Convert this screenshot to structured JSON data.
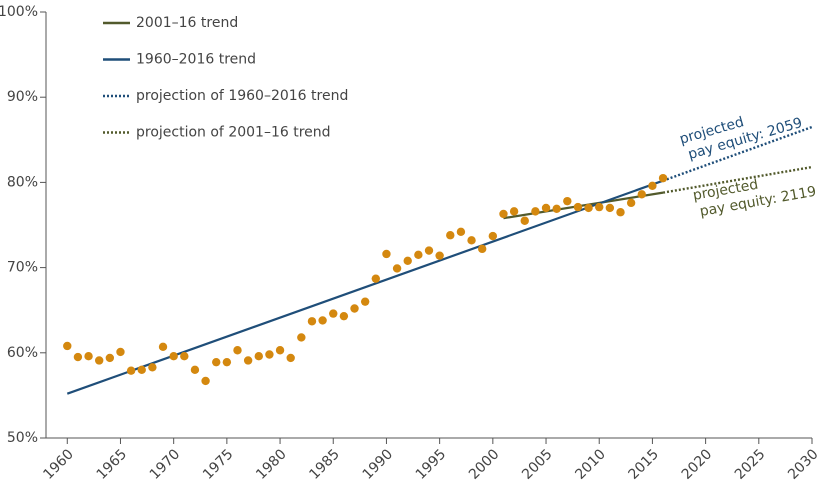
{
  "chart_data": {
    "type": "scatter",
    "xlim": [
      1958,
      2030
    ],
    "ylim": [
      50,
      100
    ],
    "xticks": [
      1960,
      1965,
      1970,
      1975,
      1980,
      1985,
      1990,
      1995,
      2000,
      2005,
      2010,
      2015,
      2020,
      2025,
      2030
    ],
    "yticks": [
      {
        "value": 50,
        "label": "50%"
      },
      {
        "value": 60,
        "label": "60%"
      },
      {
        "value": 70,
        "label": "70%"
      },
      {
        "value": 80,
        "label": "80%"
      },
      {
        "value": 90,
        "label": "90%"
      },
      {
        "value": 100,
        "label": "100%"
      }
    ],
    "series": [
      {
        "name": "2001–16 trend",
        "color": "#525a2c",
        "style": "solid",
        "x": [
          2001,
          2016
        ],
        "values": [
          75.8,
          78.8
        ]
      },
      {
        "name": "1960–2016 trend",
        "color": "#1f4e79",
        "style": "solid",
        "x": [
          1960,
          2016
        ],
        "values": [
          55.2,
          80.2
        ]
      },
      {
        "name": "projection of 1960–2016 trend",
        "color": "#1f4e79",
        "style": "dotted",
        "x": [
          2016,
          2030
        ],
        "values": [
          80.2,
          86.5
        ]
      },
      {
        "name": "projection of 2001–16 trend",
        "color": "#525a2c",
        "style": "dotted",
        "x": [
          2016,
          2030
        ],
        "values": [
          78.8,
          81.8
        ]
      },
      {
        "color": "#d4880f",
        "style": "points",
        "x": [
          1960,
          1961,
          1962,
          1963,
          1964,
          1965,
          1966,
          1967,
          1968,
          1969,
          1970,
          1971,
          1972,
          1973,
          1974,
          1975,
          1976,
          1977,
          1978,
          1979,
          1980,
          1981,
          1982,
          1983,
          1984,
          1985,
          1986,
          1987,
          1988,
          1989,
          1990,
          1991,
          1992,
          1993,
          1994,
          1995,
          1996,
          1997,
          1998,
          1999,
          2000,
          2001,
          2002,
          2003,
          2004,
          2005,
          2006,
          2007,
          2008,
          2009,
          2010,
          2011,
          2012,
          2013,
          2014,
          2015,
          2016
        ],
        "values": [
          60.8,
          59.5,
          59.6,
          59.1,
          59.4,
          60.1,
          57.9,
          58.0,
          58.3,
          60.7,
          59.6,
          59.6,
          58.0,
          56.7,
          58.9,
          58.9,
          60.3,
          59.1,
          59.6,
          59.8,
          60.3,
          59.4,
          61.8,
          63.7,
          63.8,
          64.6,
          64.3,
          65.2,
          66.0,
          68.7,
          71.6,
          69.9,
          70.8,
          71.5,
          72.0,
          71.4,
          73.8,
          74.2,
          73.2,
          72.2,
          73.7,
          76.3,
          76.6,
          75.5,
          76.6,
          77.0,
          76.9,
          77.8,
          77.1,
          77.0,
          77.1,
          77.0,
          76.5,
          77.6,
          78.6,
          79.6,
          80.5
        ]
      }
    ],
    "annotations": [
      {
        "lines": [
          "projected",
          "pay equity: 2059"
        ],
        "color": "#1f4e79"
      },
      {
        "lines": [
          "projected",
          "pay equity: 2119"
        ],
        "color": "#525a2c"
      }
    ]
  }
}
